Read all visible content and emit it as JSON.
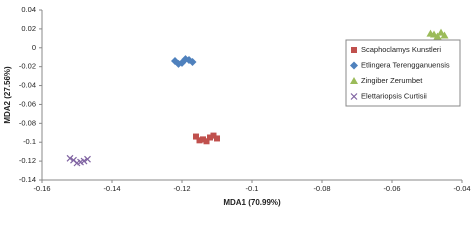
{
  "chart_data": {
    "type": "scatter",
    "xlabel": "MDA1 (70.99%)",
    "ylabel": "MDA2 (27.56%)",
    "xlim": [
      -0.16,
      -0.04
    ],
    "xticks": [
      -0.16,
      -0.14,
      -0.12,
      -0.1,
      -0.08,
      -0.06,
      -0.04
    ],
    "ylim": [
      -0.14,
      0.04
    ],
    "yticks": [
      -0.14,
      -0.12,
      -0.1,
      -0.08,
      -0.06,
      -0.04,
      -0.02,
      0,
      0.02,
      0.04
    ],
    "grid": false,
    "legend": "right",
    "series": [
      {
        "name": "Scaphoclamys Kunstleri",
        "color": "#c0504d",
        "marker": "square",
        "x": [
          -0.116,
          -0.114,
          -0.112,
          -0.11,
          -0.115,
          -0.111,
          -0.113
        ],
        "values": [
          -0.094,
          -0.097,
          -0.095,
          -0.096,
          -0.098,
          -0.093,
          -0.099
        ]
      },
      {
        "name": "Etlingera Terengganuensis",
        "color": "#4f81bd",
        "marker": "diamond",
        "x": [
          -0.122,
          -0.12,
          -0.118,
          -0.121,
          -0.119,
          -0.117
        ],
        "values": [
          -0.014,
          -0.016,
          -0.013,
          -0.017,
          -0.012,
          -0.015
        ]
      },
      {
        "name": "Zingiber Zerumbet",
        "color": "#9bbb59",
        "marker": "triangle",
        "x": [
          -0.048,
          -0.046,
          -0.047,
          -0.045,
          -0.049
        ],
        "values": [
          0.014,
          0.016,
          0.012,
          0.013,
          0.015
        ]
      },
      {
        "name": "Elettariopsis Curtisii",
        "color": "#8064a2",
        "marker": "x",
        "x": [
          -0.151,
          -0.149,
          -0.147,
          -0.15,
          -0.148,
          -0.152
        ],
        "values": [
          -0.119,
          -0.121,
          -0.118,
          -0.122,
          -0.12,
          -0.117
        ]
      }
    ]
  }
}
